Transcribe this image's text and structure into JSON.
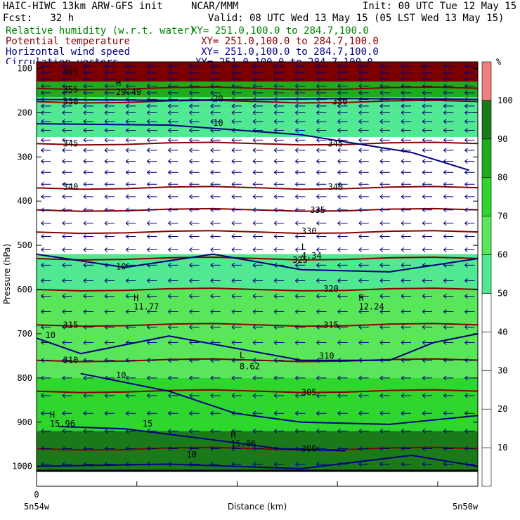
{
  "header": {
    "model": "HAIC-HIWC 13km ARW-GFS init",
    "org": "NCAR/MMM",
    "init": "Init: 00 UTC Tue 12 May 15",
    "fcst": "Fcst:   32 h",
    "valid": "Valid: 08 UTC Wed 13 May 15 (05 LST Wed 13 May 15)",
    "fields": [
      {
        "label": "Relative humidity (w.r.t. water)",
        "xy": "XY= 251.0,100.0 to 284.7,100.0",
        "color": "#008000"
      },
      {
        "label": "Potential temperature",
        "xy": "XY= 251.0,100.0 to 284.7,100.0",
        "color": "#8b0000"
      },
      {
        "label": "Horizontal wind speed",
        "xy": "XY= 251.0,100.0 to 284.7,100.0",
        "color": "#000080"
      },
      {
        "label": "Circulation vectors",
        "xy": "XY= 251.0,100.0 to 284.7,100.0",
        "color": "#000080"
      }
    ]
  },
  "chart_data": {
    "type": "heatmap",
    "xlabel": "Distance (km)",
    "ylabel": "Pressure (hPa)",
    "x_tick_labels": [
      "0"
    ],
    "x_end_labels": {
      "left": "5n54w",
      "right": "5n50w"
    },
    "y_ticks": [
      100,
      200,
      300,
      400,
      500,
      600,
      700,
      800,
      900,
      1000
    ],
    "ylim": [
      1045,
      85
    ],
    "xlim": [
      0,
      100
    ],
    "colorbar": {
      "unit": "%",
      "ticks": [
        10,
        20,
        30,
        40,
        50,
        60,
        70,
        80,
        90,
        100
      ],
      "bins": [
        {
          "from": 0,
          "to": 10,
          "color": "#ffffff"
        },
        {
          "from": 10,
          "to": 20,
          "color": "#ffffff"
        },
        {
          "from": 20,
          "to": 30,
          "color": "#ffffff"
        },
        {
          "from": 30,
          "to": 40,
          "color": "#ffffff"
        },
        {
          "from": 40,
          "to": 50,
          "color": "#ffffff"
        },
        {
          "from": 50,
          "to": 60,
          "color": "#50e890"
        },
        {
          "from": 60,
          "to": 70,
          "color": "#5ae65a"
        },
        {
          "from": 70,
          "to": 80,
          "color": "#2ed62e"
        },
        {
          "from": 80,
          "to": 90,
          "color": "#1cac1c"
        },
        {
          "from": 90,
          "to": 100,
          "color": "#1a7a1a"
        },
        {
          "from": 100,
          "to": 110,
          "color": "#f08080"
        }
      ]
    },
    "rh_bands": [
      {
        "p_top": 85,
        "p_bottom": 130,
        "color": "#7a0000"
      },
      {
        "p_top": 130,
        "p_bottom": 165,
        "color": "#1cac1c"
      },
      {
        "p_top": 165,
        "p_bottom": 195,
        "color": "#50e890"
      },
      {
        "p_top": 195,
        "p_bottom": 255,
        "color": "#50e890"
      },
      {
        "p_top": 520,
        "p_bottom": 600,
        "color": "#50e890"
      },
      {
        "p_top": 600,
        "p_bottom": 800,
        "color": "#5ae65a"
      },
      {
        "p_top": 800,
        "p_bottom": 920,
        "color": "#2ed62e"
      },
      {
        "p_top": 920,
        "p_bottom": 1010,
        "color": "#1a7a1a"
      }
    ],
    "theta_lines": [
      {
        "value": 395,
        "p": 110
      },
      {
        "value": 355,
        "p": 145
      },
      {
        "value": 350,
        "p": 175
      },
      {
        "value": 345,
        "p": 270
      },
      {
        "value": 340,
        "p": 370
      },
      {
        "value": 335,
        "p": 420
      },
      {
        "value": 330,
        "p": 470
      },
      {
        "value": 325,
        "p": 530
      },
      {
        "value": 320,
        "p": 600
      },
      {
        "value": 315,
        "p": 680
      },
      {
        "value": 310,
        "p": 760
      },
      {
        "value": 305,
        "p": 830
      },
      {
        "value": 300,
        "p": 960
      }
    ],
    "theta_labels": [
      {
        "text": "395",
        "x": 6,
        "p": 108
      },
      {
        "text": "355",
        "x": 6,
        "p": 148
      },
      {
        "text": "350",
        "x": 6,
        "p": 175
      },
      {
        "text": "345",
        "x": 6,
        "p": 270
      },
      {
        "text": "340",
        "x": 6,
        "p": 368
      },
      {
        "text": "340",
        "x": 66,
        "p": 368
      },
      {
        "text": "345",
        "x": 66,
        "p": 270
      },
      {
        "text": "335",
        "x": 62,
        "p": 420
      },
      {
        "text": "330",
        "x": 60,
        "p": 468
      },
      {
        "text": "325",
        "x": 58,
        "p": 533
      },
      {
        "text": "320",
        "x": 65,
        "p": 598
      },
      {
        "text": "315",
        "x": 6,
        "p": 680
      },
      {
        "text": "315",
        "x": 65,
        "p": 680
      },
      {
        "text": "310",
        "x": 6,
        "p": 760
      },
      {
        "text": "310",
        "x": 64,
        "p": 750
      },
      {
        "text": "305",
        "x": 60,
        "p": 833
      },
      {
        "text": "300",
        "x": 60,
        "p": 960
      },
      {
        "text": "350",
        "x": 67,
        "p": 175
      }
    ],
    "wind_contours": [
      {
        "label": "10",
        "points": [
          [
            0,
            225
          ],
          [
            30,
            228
          ],
          [
            60,
            250
          ],
          [
            85,
            290
          ],
          [
            98,
            330
          ]
        ],
        "label_x": 40,
        "label_p": 230
      },
      {
        "label": "20",
        "points": [
          [
            0,
            170
          ],
          [
            30,
            172
          ],
          [
            70,
            168
          ],
          [
            100,
            170
          ]
        ],
        "label_x": 40,
        "label_p": 175
      },
      {
        "label": "10",
        "points": [
          [
            0,
            520
          ],
          [
            20,
            550
          ],
          [
            40,
            520
          ],
          [
            60,
            555
          ],
          [
            80,
            560
          ],
          [
            100,
            530
          ]
        ],
        "label_x": 18,
        "label_p": 555
      },
      {
        "label": "10",
        "points": [
          [
            0,
            710
          ],
          [
            10,
            745
          ],
          [
            30,
            705
          ],
          [
            60,
            760
          ],
          [
            80,
            760
          ],
          [
            90,
            720
          ],
          [
            100,
            700
          ]
        ],
        "label_x": 2,
        "label_p": 710
      },
      {
        "label": "10",
        "points": [
          [
            10,
            790
          ],
          [
            30,
            830
          ],
          [
            45,
            880
          ],
          [
            60,
            900
          ],
          [
            80,
            905
          ],
          [
            100,
            885
          ]
        ],
        "label_x": 18,
        "label_p": 800
      },
      {
        "label": "15",
        "points": [
          [
            5,
            910
          ],
          [
            20,
            915
          ],
          [
            40,
            940
          ],
          [
            55,
            960
          ],
          [
            70,
            965
          ]
        ],
        "label_x": 24,
        "label_p": 910
      },
      {
        "label": "10",
        "points": [
          [
            0,
            1000
          ],
          [
            30,
            995
          ],
          [
            60,
            1005
          ],
          [
            85,
            975
          ],
          [
            100,
            1000
          ]
        ],
        "label_x": 34,
        "label_p": 980
      }
    ],
    "annotations": [
      {
        "text": "H",
        "x": 22,
        "p": 625
      },
      {
        "text": "11.77",
        "x": 22,
        "p": 645
      },
      {
        "text": "H",
        "x": 73,
        "p": 625
      },
      {
        "text": "12.24",
        "x": 73,
        "p": 645
      },
      {
        "text": "L",
        "x": 46,
        "p": 755
      },
      {
        "text": "8.62",
        "x": 46,
        "p": 780
      },
      {
        "text": "H",
        "x": 3,
        "p": 890
      },
      {
        "text": "15.96",
        "x": 3,
        "p": 910
      },
      {
        "text": "H",
        "x": 44,
        "p": 935
      },
      {
        "text": "15.06",
        "x": 44,
        "p": 955
      },
      {
        "text": "L",
        "x": 60,
        "p": 510
      },
      {
        "text": "4.34",
        "x": 60,
        "p": 530
      },
      {
        "text": "H",
        "x": 18,
        "p": 140
      },
      {
        "text": "29.49",
        "x": 18,
        "p": 160
      }
    ],
    "surface_p": 1010,
    "vector_rows": [
      95,
      110,
      125,
      140,
      155,
      170,
      185,
      200,
      220,
      240,
      262,
      285,
      310,
      335,
      362,
      390,
      420,
      450,
      480,
      510,
      545,
      580,
      615,
      650,
      685,
      720,
      760,
      800,
      840,
      880,
      920,
      960,
      995
    ]
  }
}
